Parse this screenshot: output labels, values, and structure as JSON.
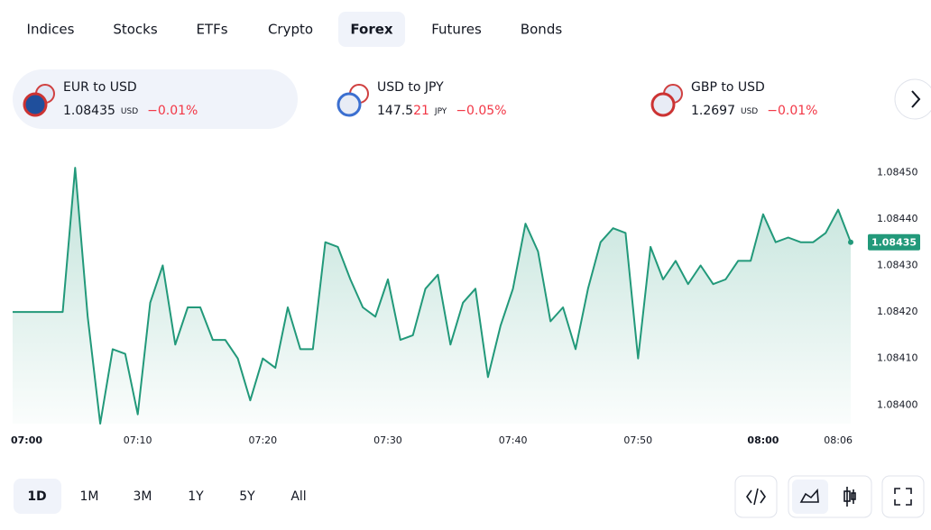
{
  "tabs": [
    "Indices",
    "Stocks",
    "ETFs",
    "Crypto",
    "Forex",
    "Futures",
    "Bonds"
  ],
  "active_tab": 4,
  "tickers": [
    {
      "name": "EUR to USD",
      "price": "1.08435",
      "price_changed_digits": "",
      "currency": "USD",
      "change": "−0.01%"
    },
    {
      "name": "USD to JPY",
      "price": "147.5",
      "price_changed_digits": "21",
      "currency": "JPY",
      "change": "−0.05%"
    },
    {
      "name": "GBP to USD",
      "price": "1.2697",
      "price_changed_digits": "",
      "currency": "USD",
      "change": "−0.01%"
    }
  ],
  "ranges": [
    "1D",
    "1M",
    "3M",
    "1Y",
    "5Y",
    "All"
  ],
  "active_range": 0,
  "chart_data": {
    "type": "line",
    "color": "#22997a",
    "x": [
      "07:00",
      "07:01",
      "07:02",
      "07:03",
      "07:04",
      "07:05",
      "07:06",
      "07:07",
      "07:08",
      "07:09",
      "07:10",
      "07:11",
      "07:12",
      "07:13",
      "07:14",
      "07:15",
      "07:16",
      "07:17",
      "07:18",
      "07:19",
      "07:20",
      "07:21",
      "07:22",
      "07:23",
      "07:24",
      "07:25",
      "07:26",
      "07:27",
      "07:28",
      "07:29",
      "07:30",
      "07:31",
      "07:32",
      "07:33",
      "07:34",
      "07:35",
      "07:36",
      "07:37",
      "07:38",
      "07:39",
      "07:40",
      "07:41",
      "07:42",
      "07:43",
      "07:44",
      "07:45",
      "07:46",
      "07:47",
      "07:48",
      "07:49",
      "07:50",
      "07:51",
      "07:52",
      "07:53",
      "07:54",
      "07:55",
      "07:56",
      "07:57",
      "07:58",
      "07:59",
      "08:00",
      "08:01",
      "08:02",
      "08:03",
      "08:04",
      "08:05",
      "08:06",
      "08:07"
    ],
    "values": [
      1.0842,
      1.0842,
      1.0842,
      1.0842,
      1.0842,
      1.08451,
      1.08419,
      1.08396,
      1.08412,
      1.08411,
      1.08398,
      1.08422,
      1.0843,
      1.08413,
      1.08421,
      1.08421,
      1.08414,
      1.08414,
      1.0841,
      1.08401,
      1.0841,
      1.08408,
      1.08421,
      1.08412,
      1.08412,
      1.08435,
      1.08434,
      1.08427,
      1.08421,
      1.08419,
      1.08427,
      1.08414,
      1.08415,
      1.08425,
      1.08428,
      1.08413,
      1.08422,
      1.08425,
      1.08406,
      1.08417,
      1.08425,
      1.08439,
      1.08433,
      1.08418,
      1.08421,
      1.08412,
      1.08425,
      1.08435,
      1.08438,
      1.08437,
      1.0841,
      1.08434,
      1.08427,
      1.08431,
      1.08426,
      1.0843,
      1.08426,
      1.08427,
      1.08431,
      1.08431,
      1.08441,
      1.08435,
      1.08436,
      1.08435,
      1.08435,
      1.08437,
      1.08442,
      1.08435
    ],
    "last_value_label": "1.08435",
    "ylim": [
      1.08396,
      1.08458
    ],
    "yticks": [
      {
        "value": 1.084,
        "label": "1.08400"
      },
      {
        "value": 1.0841,
        "label": "1.08410"
      },
      {
        "value": 1.0842,
        "label": "1.08420"
      },
      {
        "value": 1.0843,
        "label": "1.08430"
      },
      {
        "value": 1.0844,
        "label": "1.08440"
      },
      {
        "value": 1.0845,
        "label": "1.08450"
      }
    ],
    "xticks": [
      "07:00",
      "07:10",
      "07:20",
      "07:30",
      "07:40",
      "07:50",
      "08:00",
      "08:06"
    ],
    "bold_xtick": "08:00"
  }
}
